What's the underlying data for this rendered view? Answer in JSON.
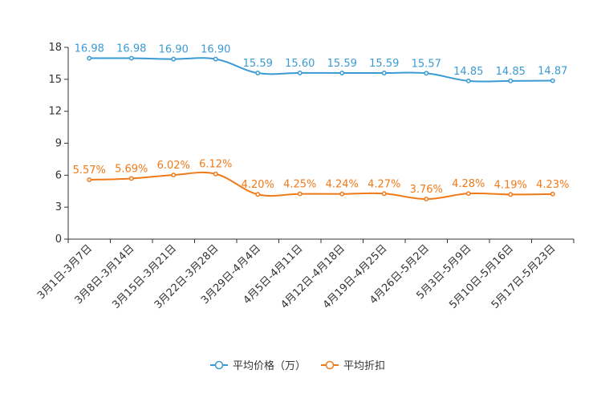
{
  "chart_data": {
    "type": "line",
    "title": "",
    "xlabel": "",
    "ylabel": "",
    "ylim": [
      0,
      18
    ],
    "yticks": [
      0,
      3,
      6,
      9,
      12,
      15,
      18
    ],
    "categories": [
      "3月1日-3月7日",
      "3月8日-3月14日",
      "3月15日-3月21日",
      "3月22日-3月28日",
      "3月29日-4月4日",
      "4月5日-4月11日",
      "4月12日-4月18日",
      "4月19日-4月25日",
      "4月26日-5月2日",
      "5月3日-5月9日",
      "5月10日-5月16日",
      "5月17日-5月23日"
    ],
    "series": [
      {
        "name": "平均价格（万）",
        "color": "#3a9bd4",
        "values": [
          16.98,
          16.98,
          16.9,
          16.9,
          15.59,
          15.6,
          15.59,
          15.59,
          15.57,
          14.85,
          14.85,
          14.87
        ],
        "labels": [
          "16.98",
          "16.98",
          "16.90",
          "16.90",
          "15.59",
          "15.60",
          "15.59",
          "15.59",
          "15.57",
          "14.85",
          "14.85",
          "14.87"
        ]
      },
      {
        "name": "平均折扣",
        "color": "#f07a19",
        "values": [
          5.57,
          5.69,
          6.02,
          6.12,
          4.2,
          4.25,
          4.24,
          4.27,
          3.76,
          4.28,
          4.19,
          4.23
        ],
        "labels": [
          "5.57%",
          "5.69%",
          "6.02%",
          "6.12%",
          "4.20%",
          "4.25%",
          "4.24%",
          "4.27%",
          "3.76%",
          "4.28%",
          "4.19%",
          "4.23%"
        ]
      }
    ],
    "legend_position": "bottom-center"
  }
}
